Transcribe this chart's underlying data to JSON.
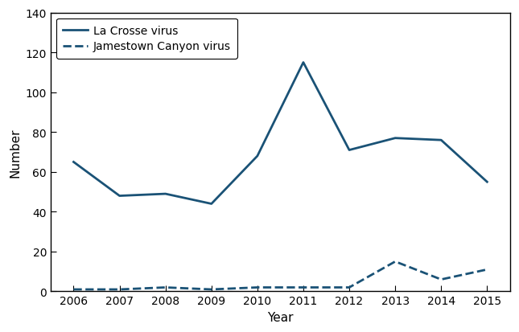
{
  "years": [
    2006,
    2007,
    2008,
    2009,
    2010,
    2011,
    2012,
    2013,
    2014,
    2015
  ],
  "lacrosse": [
    65,
    48,
    49,
    44,
    68,
    115,
    71,
    77,
    76,
    55
  ],
  "jamestown": [
    1,
    1,
    2,
    1,
    2,
    2,
    2,
    15,
    6,
    11
  ],
  "lacrosse_color": "#1a5276",
  "jamestown_color": "#1a5276",
  "lacrosse_label": "La Crosse virus",
  "jamestown_label": "Jamestown Canyon virus",
  "xlabel": "Year",
  "ylabel": "Number",
  "ylim": [
    0,
    140
  ],
  "yticks": [
    0,
    20,
    40,
    60,
    80,
    100,
    120,
    140
  ],
  "xlim": [
    2005.5,
    2015.5
  ],
  "xticks": [
    2006,
    2007,
    2008,
    2009,
    2010,
    2011,
    2012,
    2013,
    2014,
    2015
  ],
  "linewidth": 2.0,
  "figsize": [
    6.45,
    4.14
  ],
  "dpi": 100
}
